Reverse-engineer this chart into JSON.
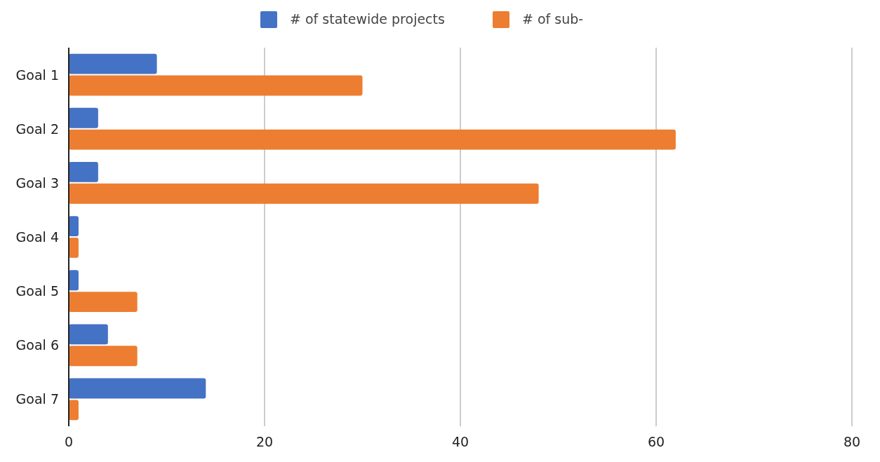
{
  "chart_data": {
    "type": "bar",
    "orientation": "horizontal",
    "categories": [
      "Goal 1",
      "Goal 2",
      "Goal 3",
      "Goal 4",
      "Goal 5",
      "Goal 6",
      "Goal 7"
    ],
    "series": [
      {
        "name": "# of statewide projects",
        "color": "#4472c4",
        "values": [
          9,
          3,
          3,
          1,
          1,
          4,
          14
        ]
      },
      {
        "name": "# of sub-",
        "color": "#ed7d31",
        "values": [
          30,
          62,
          48,
          1,
          7,
          7,
          1
        ]
      }
    ],
    "xlim": [
      0,
      80
    ],
    "xticks": [
      0,
      20,
      40,
      60,
      80
    ],
    "grid": "x",
    "legend": "top"
  }
}
